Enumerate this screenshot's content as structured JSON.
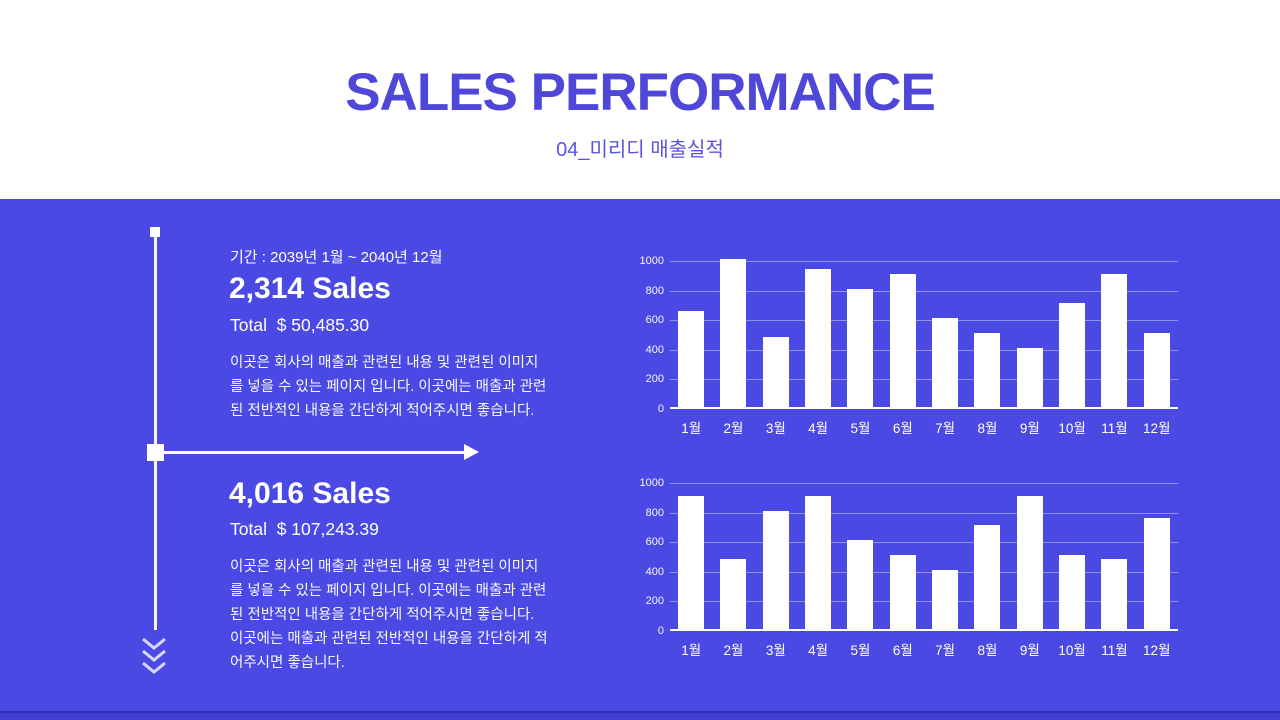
{
  "slide": {
    "title": "SALES PERFORMANCE",
    "subtitle": "04_미리디 매출실적"
  },
  "colors": {
    "background_blue": "#4B49E3",
    "title_blue": "#4E47D8",
    "subtitle_blue": "#5A54E2",
    "bar_white": "#FFFFFF",
    "gridline": "rgba(255,255,255,0.40)"
  },
  "timeline": {
    "period_label": "기간 : 2039년 1월 ~ 2040년 12월",
    "sections": [
      {
        "sales_count": "2,314 Sales",
        "total": "Total  $ 50,485.30",
        "description": "이곳은 회사의 매출과 관련된 내용 및 관련된 이미지\n를 넣을 수 있는 페이지 입니다. 이곳에는 매출과 관련\n된 전반적인 내용을 간단하게 적어주시면 좋습니다."
      },
      {
        "sales_count": "4,016 Sales",
        "total": "Total  $ 107,243.39",
        "description": "이곳은 회사의 매출과 관련된 내용 및 관련된 이미지\n를 넣을 수 있는 페이지 입니다. 이곳에는 매출과 관련\n된 전반적인 내용을 간단하게 적어주시면 좋습니다.\n이곳에는 매출과 관련된 전반적인 내용을 간단하게 적\n어주시면 좋습니다."
      }
    ]
  },
  "chart_data": [
    {
      "type": "bar",
      "title": "",
      "categories": [
        "1월",
        "2월",
        "3월",
        "4월",
        "5월",
        "6월",
        "7월",
        "8월",
        "9월",
        "10월",
        "11월",
        "12월"
      ],
      "values": [
        650,
        1000,
        470,
        930,
        800,
        900,
        600,
        500,
        400,
        700,
        900,
        500
      ],
      "xlabel": "",
      "ylabel": "",
      "ylim": [
        0,
        1000
      ],
      "yticks": [
        0,
        200,
        400,
        600,
        800,
        1000
      ],
      "grid": true,
      "legend": false,
      "bar_color": "#FFFFFF"
    },
    {
      "type": "bar",
      "title": "",
      "categories": [
        "1월",
        "2월",
        "3월",
        "4월",
        "5월",
        "6월",
        "7월",
        "8월",
        "9월",
        "10월",
        "11월",
        "12월"
      ],
      "values": [
        900,
        470,
        800,
        900,
        600,
        500,
        400,
        700,
        900,
        500,
        470,
        750
      ],
      "xlabel": "",
      "ylabel": "",
      "ylim": [
        0,
        1000
      ],
      "yticks": [
        0,
        200,
        400,
        600,
        800,
        1000
      ],
      "grid": true,
      "legend": false,
      "bar_color": "#FFFFFF"
    }
  ]
}
